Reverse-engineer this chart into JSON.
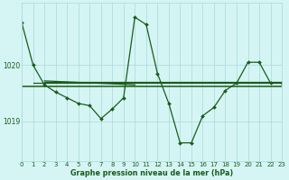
{
  "background_color": "#d5f5f5",
  "grid_color": "#b0dcdc",
  "line_color": "#1a5c1a",
  "xlabel": "Graphe pression niveau de la mer (hPa)",
  "ylim": [
    1018.3,
    1021.1
  ],
  "xlim": [
    0,
    23
  ],
  "yticks": [
    1019,
    1020
  ],
  "xticks": [
    0,
    1,
    2,
    3,
    4,
    5,
    6,
    7,
    8,
    9,
    10,
    11,
    12,
    13,
    14,
    15,
    16,
    17,
    18,
    19,
    20,
    21,
    22,
    23
  ],
  "main_y": [
    1020.75,
    1020.0,
    1019.65,
    1019.52,
    1019.42,
    1019.32,
    1019.28,
    1019.05,
    1019.22,
    1019.42,
    1020.85,
    1020.72,
    1019.85,
    1019.32,
    1018.62,
    1018.62,
    1019.1,
    1019.25,
    1019.55,
    1019.68,
    1020.05,
    1020.05,
    1019.68,
    1019.68
  ],
  "trend_lines": [
    {
      "x": [
        0,
        23
      ],
      "y": [
        1019.62,
        1019.62
      ],
      "lw": 1.1
    },
    {
      "x": [
        1,
        23
      ],
      "y": [
        1019.68,
        1019.68
      ],
      "lw": 0.9
    },
    {
      "x": [
        2,
        10
      ],
      "y": [
        1019.72,
        1019.65
      ],
      "lw": 0.9
    },
    {
      "x": [
        2,
        23
      ],
      "y": [
        1019.7,
        1019.7
      ],
      "lw": 0.9
    }
  ]
}
